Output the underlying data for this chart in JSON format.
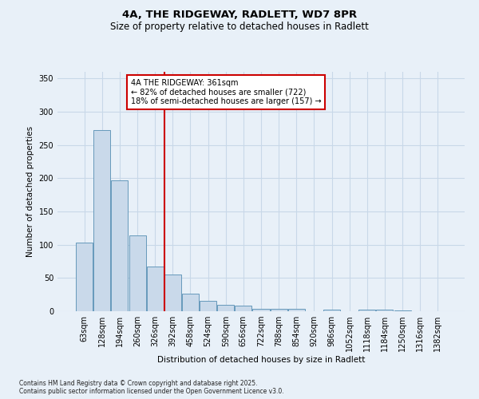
{
  "title_line1": "4A, THE RIDGEWAY, RADLETT, WD7 8PR",
  "title_line2": "Size of property relative to detached houses in Radlett",
  "xlabel": "Distribution of detached houses by size in Radlett",
  "ylabel": "Number of detached properties",
  "bar_values": [
    103,
    272,
    197,
    114,
    67,
    55,
    26,
    16,
    10,
    8,
    4,
    4,
    4,
    0,
    3,
    0,
    2,
    3,
    1,
    0,
    0
  ],
  "bar_labels": [
    "63sqm",
    "128sqm",
    "194sqm",
    "260sqm",
    "326sqm",
    "392sqm",
    "458sqm",
    "524sqm",
    "590sqm",
    "656sqm",
    "722sqm",
    "788sqm",
    "854sqm",
    "920sqm",
    "986sqm",
    "1052sqm",
    "1118sqm",
    "1184sqm",
    "1250sqm",
    "1316sqm",
    "1382sqm"
  ],
  "bar_color": "#c9d9ea",
  "bar_edge_color": "#6699bb",
  "vline_color": "#cc0000",
  "annotation_text": "4A THE RIDGEWAY: 361sqm\n← 82% of detached houses are smaller (722)\n18% of semi-detached houses are larger (157) →",
  "annotation_box_color": "#cc0000",
  "ylim": [
    0,
    360
  ],
  "yticks": [
    0,
    50,
    100,
    150,
    200,
    250,
    300,
    350
  ],
  "grid_color": "#c8d8e8",
  "bg_color": "#e8f0f8",
  "footer_text": "Contains HM Land Registry data © Crown copyright and database right 2025.\nContains public sector information licensed under the Open Government Licence v3.0."
}
